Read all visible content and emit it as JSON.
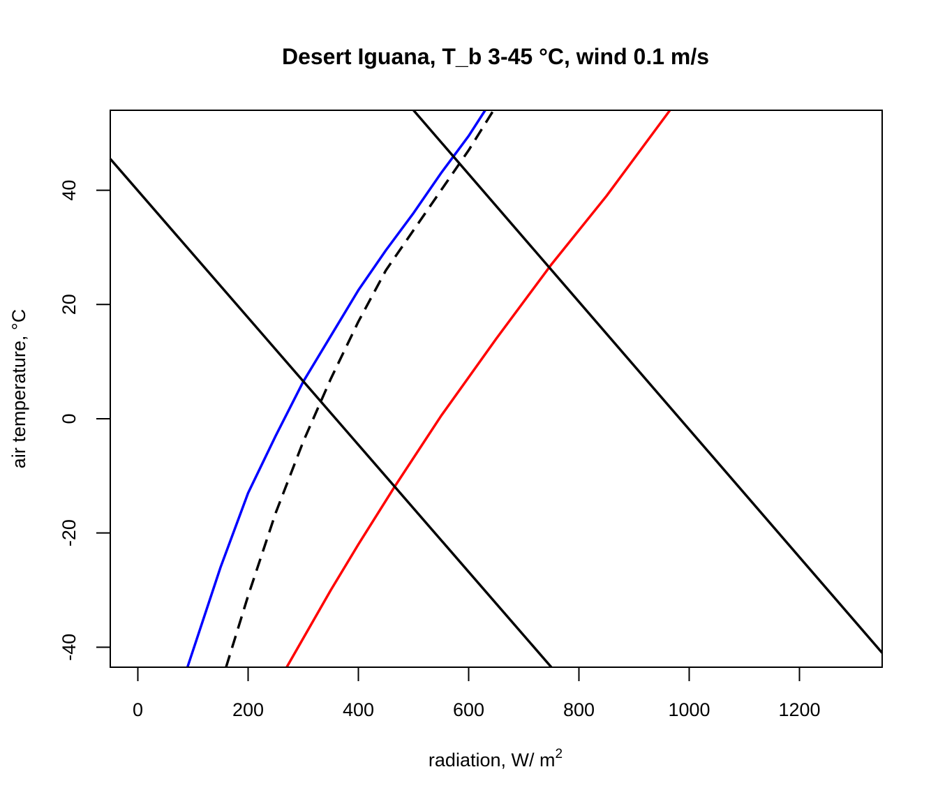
{
  "chart_data": {
    "type": "line",
    "title": "Desert Iguana, T_b 3-45 °C, wind 0.1 m/s",
    "xlabel": "radiation, W/ m",
    "xlabel_superscript": "2",
    "ylabel": "air temperature, °C",
    "xlim": [
      -50,
      1350
    ],
    "ylim": [
      -43.5,
      54
    ],
    "xticks": [
      0,
      200,
      400,
      600,
      800,
      1000,
      1200
    ],
    "yticks": [
      -40,
      -20,
      0,
      20,
      40
    ],
    "grid": false,
    "legend": "none",
    "series": [
      {
        "color": "#0000ff",
        "dash": "solid",
        "points": [
          [
            90,
            -43.5
          ],
          [
            150,
            -26
          ],
          [
            200,
            -13
          ],
          [
            250,
            -3
          ],
          [
            300,
            6.5
          ],
          [
            350,
            14.5
          ],
          [
            400,
            22.5
          ],
          [
            450,
            29.5
          ],
          [
            500,
            36
          ],
          [
            550,
            43
          ],
          [
            600,
            49.5
          ],
          [
            630,
            54
          ]
        ]
      },
      {
        "color": "#000000",
        "dash": "dashed",
        "points": [
          [
            160,
            -43.5
          ],
          [
            200,
            -31
          ],
          [
            250,
            -16.5
          ],
          [
            300,
            -4
          ],
          [
            350,
            7
          ],
          [
            400,
            17
          ],
          [
            450,
            26
          ],
          [
            500,
            33
          ],
          [
            550,
            40
          ],
          [
            600,
            47
          ],
          [
            645,
            54
          ]
        ]
      },
      {
        "color": "#ff0000",
        "dash": "solid",
        "points": [
          [
            270,
            -43.5
          ],
          [
            350,
            -30
          ],
          [
            400,
            -22
          ],
          [
            465,
            -12
          ],
          [
            550,
            0.5
          ],
          [
            650,
            14
          ],
          [
            750,
            27
          ],
          [
            850,
            39
          ],
          [
            965,
            54
          ]
        ]
      },
      {
        "color": "#000000",
        "dash": "solid",
        "points": [
          [
            -50,
            45.5
          ],
          [
            750,
            -43.5
          ]
        ]
      },
      {
        "color": "#000000",
        "dash": "solid",
        "points": [
          [
            500,
            54
          ],
          [
            1350,
            -41
          ]
        ]
      }
    ]
  }
}
